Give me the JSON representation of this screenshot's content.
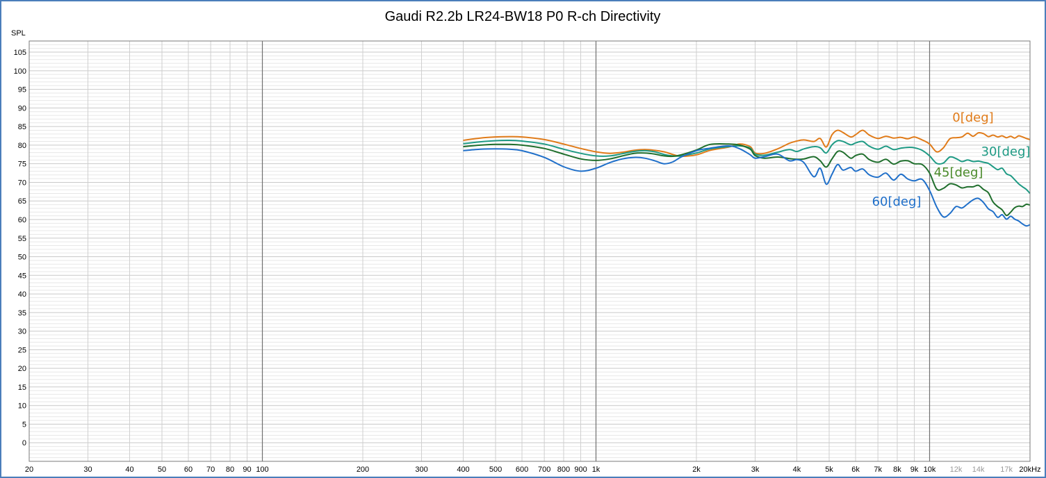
{
  "chart_data": {
    "type": "line",
    "title": "Gaudi R2.2b LR24-BW18 P0 R-ch Directivity",
    "ylabel": "SPL",
    "xlabel": "",
    "x_scale": "log",
    "xlim": [
      20,
      20000
    ],
    "ylim": [
      -5,
      108
    ],
    "grid": true,
    "y_ticks": [
      "105",
      "100",
      "95",
      "90",
      "85",
      "80",
      "75",
      "70",
      "65",
      "60",
      "55",
      "50",
      "45",
      "40",
      "35",
      "30",
      "25",
      "20",
      "15",
      "10",
      "5",
      "0"
    ],
    "x_ticks": [
      {
        "label": "20",
        "value": 20,
        "style": "dark"
      },
      {
        "label": "30",
        "value": 30,
        "style": "dark"
      },
      {
        "label": "40",
        "value": 40,
        "style": "dark"
      },
      {
        "label": "50",
        "value": 50,
        "style": "dark"
      },
      {
        "label": "60",
        "value": 60,
        "style": "dark"
      },
      {
        "label": "70",
        "value": 70,
        "style": "dark"
      },
      {
        "label": "80",
        "value": 80,
        "style": "dark"
      },
      {
        "label": "90",
        "value": 90,
        "style": "dark"
      },
      {
        "label": "100",
        "value": 100,
        "style": "dark"
      },
      {
        "label": "200",
        "value": 200,
        "style": "dark"
      },
      {
        "label": "300",
        "value": 300,
        "style": "dark"
      },
      {
        "label": "400",
        "value": 400,
        "style": "dark"
      },
      {
        "label": "500",
        "value": 500,
        "style": "dark"
      },
      {
        "label": "600",
        "value": 600,
        "style": "dark"
      },
      {
        "label": "700",
        "value": 700,
        "style": "dark"
      },
      {
        "label": "800",
        "value": 800,
        "style": "dark"
      },
      {
        "label": "900",
        "value": 900,
        "style": "dark"
      },
      {
        "label": "1k",
        "value": 1000,
        "style": "dark"
      },
      {
        "label": "2k",
        "value": 2000,
        "style": "dark"
      },
      {
        "label": "3k",
        "value": 3000,
        "style": "dark"
      },
      {
        "label": "4k",
        "value": 4000,
        "style": "dark"
      },
      {
        "label": "5k",
        "value": 5000,
        "style": "dark"
      },
      {
        "label": "6k",
        "value": 6000,
        "style": "dark"
      },
      {
        "label": "7k",
        "value": 7000,
        "style": "dark"
      },
      {
        "label": "8k",
        "value": 8000,
        "style": "dark"
      },
      {
        "label": "9k",
        "value": 9000,
        "style": "dark"
      },
      {
        "label": "10k",
        "value": 10000,
        "style": "dark"
      },
      {
        "label": "12k",
        "value": 12000,
        "style": "gray"
      },
      {
        "label": "14k",
        "value": 14000,
        "style": "gray"
      },
      {
        "label": "17k",
        "value": 17000,
        "style": "gray"
      },
      {
        "label": "20kHz",
        "value": 20000,
        "style": "dark"
      }
    ],
    "series": [
      {
        "name": "0[deg]",
        "color": "#e07b19",
        "x": [
          400,
          450,
          500,
          550,
          600,
          700,
          800,
          900,
          1000,
          1100,
          1200,
          1300,
          1400,
          1500,
          1600,
          1700,
          1800,
          2000,
          2200,
          2500,
          2700,
          2900,
          3000,
          3200,
          3500,
          3800,
          4000,
          4200,
          4500,
          4700,
          4900,
          5100,
          5300,
          5500,
          5800,
          6000,
          6300,
          6600,
          7000,
          7400,
          7800,
          8200,
          8600,
          9000,
          9500,
          10000,
          10500,
          11000,
          11500,
          12000,
          12500,
          13000,
          13500,
          14000,
          14500,
          15000,
          15500,
          16000,
          16500,
          17000,
          17500,
          18000,
          18500,
          19000,
          19500,
          20000
        ],
        "y": [
          81.3,
          81.9,
          82.2,
          82.3,
          82.2,
          81.5,
          80.3,
          79.1,
          78.2,
          77.8,
          78.1,
          78.6,
          78.8,
          78.6,
          78.2,
          77.5,
          77.0,
          77.4,
          78.6,
          79.5,
          80.3,
          79.6,
          77.9,
          77.8,
          79.0,
          80.5,
          81.1,
          81.4,
          81.0,
          81.8,
          79.5,
          82.8,
          84.0,
          83.4,
          82.2,
          82.8,
          84.0,
          82.7,
          81.8,
          82.4,
          81.9,
          82.1,
          81.7,
          82.2,
          81.4,
          80.3,
          78.2,
          79.3,
          81.7,
          82.0,
          82.2,
          83.2,
          82.4,
          83.3,
          83.1,
          82.3,
          82.7,
          82.2,
          82.5,
          82.0,
          82.4,
          81.9,
          82.5,
          82.2,
          81.8,
          81.5
        ]
      },
      {
        "name": "30[deg]",
        "color": "#1e9a84",
        "x": [
          400,
          450,
          500,
          550,
          600,
          700,
          800,
          900,
          1000,
          1100,
          1200,
          1300,
          1400,
          1500,
          1600,
          1700,
          1800,
          2000,
          2200,
          2500,
          2700,
          2900,
          3000,
          3200,
          3500,
          3800,
          4000,
          4200,
          4500,
          4700,
          4900,
          5100,
          5300,
          5500,
          5800,
          6000,
          6300,
          6600,
          7000,
          7400,
          7800,
          8200,
          8600,
          9000,
          9500,
          10000,
          10500,
          11000,
          11500,
          12000,
          12500,
          13000,
          13500,
          14000,
          14500,
          15000,
          15500,
          16000,
          16500,
          17000,
          17500,
          18000,
          18500,
          19000,
          19500,
          20000
        ],
        "y": [
          80.4,
          80.9,
          81.2,
          81.3,
          81.1,
          80.3,
          78.9,
          77.8,
          77.1,
          77.1,
          77.7,
          78.3,
          78.5,
          78.2,
          77.5,
          77.1,
          77.1,
          77.9,
          79.0,
          79.6,
          79.8,
          79.2,
          77.6,
          77.3,
          78.1,
          78.8,
          78.3,
          79.0,
          79.6,
          79.3,
          77.9,
          80.1,
          81.2,
          81.0,
          80.1,
          80.6,
          81.0,
          79.7,
          78.9,
          79.7,
          78.8,
          79.2,
          79.4,
          79.3,
          78.6,
          77.1,
          75.1,
          75.2,
          76.8,
          76.4,
          75.6,
          76.0,
          75.6,
          75.7,
          75.4,
          75.1,
          74.2,
          73.4,
          73.8,
          72.3,
          71.8,
          70.7,
          69.6,
          68.8,
          68.1,
          67.0
        ]
      },
      {
        "name": "45[deg]",
        "color": "#1f6e2c",
        "label_color": "#4a8a2a",
        "x": [
          400,
          450,
          500,
          550,
          600,
          700,
          800,
          900,
          1000,
          1100,
          1200,
          1300,
          1400,
          1500,
          1600,
          1700,
          1800,
          2000,
          2200,
          2500,
          2700,
          2900,
          3000,
          3200,
          3500,
          3800,
          4000,
          4200,
          4500,
          4700,
          4900,
          5100,
          5300,
          5500,
          5800,
          6000,
          6300,
          6600,
          7000,
          7400,
          7800,
          8200,
          8600,
          9000,
          9500,
          10000,
          10500,
          11000,
          11500,
          12000,
          12500,
          13000,
          13500,
          14000,
          14500,
          15000,
          15500,
          16000,
          16500,
          17000,
          17500,
          18000,
          18500,
          19000,
          19500,
          20000
        ],
        "y": [
          79.6,
          80.0,
          80.2,
          80.2,
          80.0,
          79.1,
          77.6,
          76.3,
          75.9,
          76.3,
          77.1,
          77.8,
          77.9,
          77.6,
          77.1,
          77.0,
          77.4,
          78.7,
          80.2,
          80.3,
          80.0,
          78.9,
          77.2,
          76.5,
          76.8,
          76.4,
          76.2,
          76.3,
          76.9,
          75.8,
          74.1,
          76.3,
          78.3,
          78.1,
          76.5,
          77.2,
          77.6,
          76.1,
          75.4,
          76.2,
          74.9,
          75.7,
          75.8,
          75.0,
          74.8,
          72.5,
          68.2,
          68.4,
          69.6,
          69.3,
          68.5,
          68.8,
          68.8,
          69.2,
          68.1,
          67.2,
          64.7,
          63.5,
          62.6,
          61.1,
          62.0,
          63.2,
          63.6,
          63.5,
          64.1,
          63.9
        ]
      },
      {
        "name": "60[deg]",
        "color": "#1f6fc9",
        "x": [
          400,
          450,
          500,
          550,
          600,
          700,
          800,
          900,
          1000,
          1100,
          1200,
          1300,
          1400,
          1500,
          1600,
          1700,
          1800,
          2000,
          2200,
          2500,
          2700,
          2900,
          3000,
          3200,
          3500,
          3800,
          4000,
          4200,
          4500,
          4700,
          4900,
          5100,
          5300,
          5500,
          5800,
          6000,
          6300,
          6600,
          7000,
          7400,
          7800,
          8200,
          8600,
          9000,
          9500,
          10000,
          10500,
          11000,
          11500,
          12000,
          12500,
          13000,
          13500,
          14000,
          14500,
          15000,
          15500,
          16000,
          16500,
          17000,
          17500,
          18000,
          18500,
          19000,
          19500,
          20000
        ],
        "y": [
          78.5,
          78.9,
          79.0,
          78.9,
          78.5,
          76.7,
          74.2,
          73.0,
          73.8,
          75.3,
          76.3,
          76.7,
          76.5,
          75.8,
          75.0,
          75.5,
          76.8,
          78.5,
          79.2,
          79.8,
          79.0,
          77.4,
          76.5,
          76.9,
          77.6,
          75.8,
          76.1,
          75.3,
          71.5,
          73.8,
          69.5,
          72.2,
          74.8,
          73.3,
          74.0,
          73.0,
          73.6,
          72.0,
          71.4,
          72.5,
          70.6,
          72.2,
          70.9,
          70.4,
          70.8,
          67.8,
          63.4,
          60.7,
          61.6,
          63.5,
          63.1,
          64.2,
          65.3,
          65.7,
          64.6,
          62.9,
          62.1,
          60.6,
          61.3,
          60.1,
          60.9,
          60.1,
          59.6,
          58.8,
          58.3,
          58.6
        ]
      }
    ]
  }
}
